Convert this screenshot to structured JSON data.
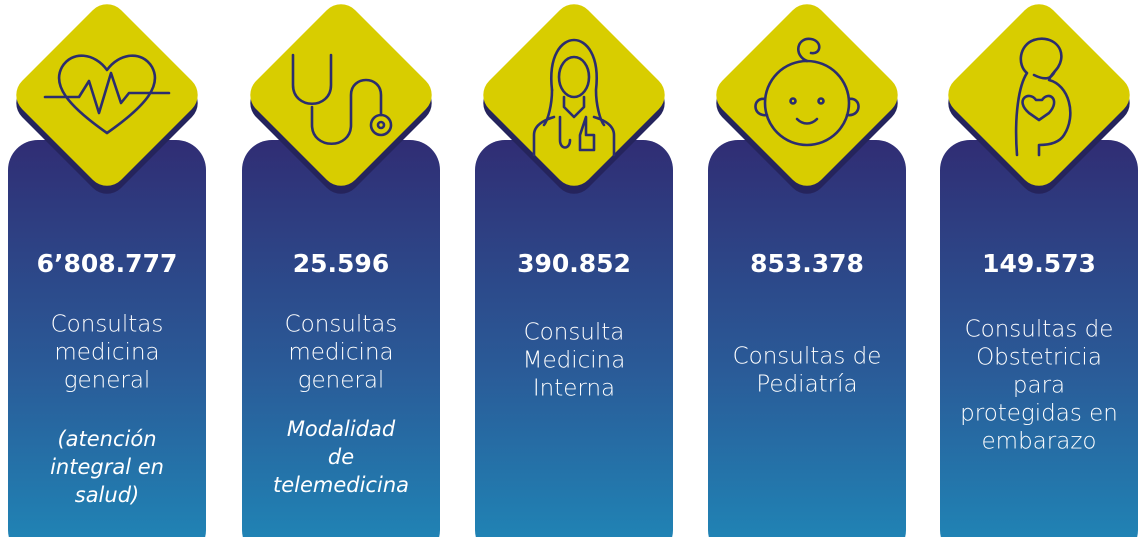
{
  "cards": [
    {
      "value": "6’808.777",
      "label": [
        "Consultas",
        "medicina",
        "general"
      ],
      "note": [
        "(atención",
        "integral en",
        "salud)"
      ]
    },
    {
      "value": "25.596",
      "label": [
        "Consultas",
        "medicina",
        "general"
      ],
      "note": [
        "Modalidad",
        "de",
        "telemedicina"
      ]
    },
    {
      "value": "390.852",
      "label": [
        "Consulta",
        "Medicina",
        "Interna"
      ]
    },
    {
      "value": "853.378",
      "label": [
        "Consultas de",
        "Pediatría"
      ]
    },
    {
      "value": "149.573",
      "label": [
        "Consultas de",
        "Obstetricia",
        "para",
        "protegidas en",
        "embarazo"
      ]
    }
  ]
}
